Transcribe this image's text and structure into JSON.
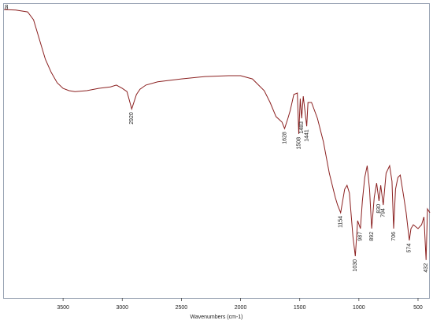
{
  "chart_data": {
    "type": "line",
    "corner_label": "8",
    "x_label": "Wavenumbers (cm-1)",
    "color": "#8b2020",
    "xlim": [
      4000,
      400
    ],
    "ylim": [
      0,
      100
    ],
    "xticks": [
      3500,
      3000,
      2500,
      2000,
      1500,
      1000,
      500
    ],
    "x": [
      4000,
      3900,
      3800,
      3750,
      3700,
      3650,
      3600,
      3550,
      3500,
      3450,
      3400,
      3300,
      3200,
      3100,
      3050,
      3000,
      2960,
      2920,
      2880,
      2850,
      2800,
      2700,
      2500,
      2300,
      2100,
      2000,
      1900,
      1800,
      1750,
      1700,
      1650,
      1628,
      1600,
      1580,
      1550,
      1520,
      1508,
      1495,
      1483,
      1470,
      1441,
      1430,
      1400,
      1350,
      1300,
      1250,
      1200,
      1180,
      1154,
      1120,
      1100,
      1080,
      1050,
      1030,
      1010,
      987,
      970,
      950,
      930,
      910,
      892,
      870,
      850,
      830,
      815,
      794,
      770,
      740,
      720,
      706,
      690,
      670,
      650,
      620,
      600,
      574,
      560,
      540,
      500,
      470,
      450,
      432,
      420,
      400
    ],
    "values": [
      98.1,
      97.9,
      97.3,
      94.6,
      87.9,
      81.2,
      76.7,
      73.2,
      71.3,
      70.5,
      70.2,
      70.5,
      71.3,
      71.8,
      72.4,
      71.3,
      70.2,
      64.3,
      69.2,
      71.0,
      72.4,
      73.5,
      74.5,
      75.3,
      75.6,
      75.6,
      74.5,
      70.5,
      66.5,
      61.7,
      59.8,
      57.6,
      61.1,
      63.8,
      69.2,
      69.7,
      55.8,
      67.8,
      61.1,
      68.6,
      58.4,
      66.5,
      66.5,
      61.1,
      53.1,
      42.4,
      34.3,
      31.6,
      29.0,
      37.0,
      38.3,
      35.7,
      20.9,
      14.2,
      26.3,
      23.6,
      33.0,
      41.0,
      45.0,
      37.0,
      23.6,
      34.3,
      39.1,
      33.0,
      38.3,
      31.6,
      42.4,
      45.0,
      39.7,
      23.6,
      37.0,
      41.0,
      41.8,
      34.3,
      29.0,
      19.6,
      23.6,
      24.9,
      23.6,
      24.9,
      27.6,
      12.9,
      30.3,
      29.0
    ],
    "peak_labels": [
      2920,
      1628,
      1508,
      1483,
      1441,
      1154,
      1030,
      987,
      892,
      830,
      794,
      706,
      574,
      432
    ]
  }
}
